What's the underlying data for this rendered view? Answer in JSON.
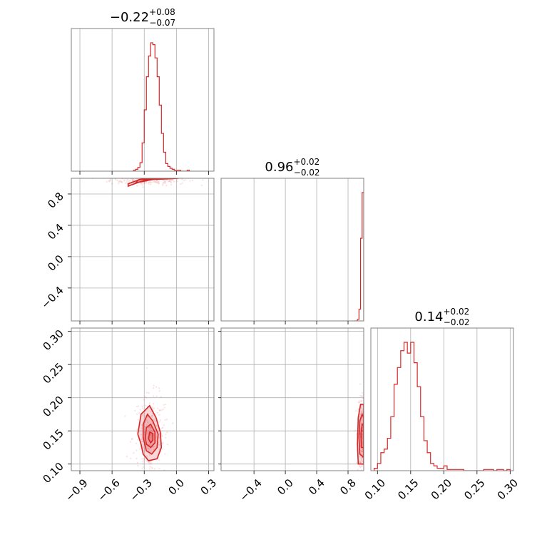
{
  "chart_data": {
    "type": "corner",
    "color": "#d62728",
    "parameters": [
      {
        "title": {
          "median": "−0.22",
          "plus": "+0.08",
          "minus": "−0.07"
        },
        "range": [
          -0.98,
          0.35
        ],
        "ticks": [
          -0.9,
          -0.6,
          -0.3,
          0.0,
          0.3
        ],
        "tick_labels": [
          "−0.9",
          "−0.6",
          "−0.3",
          "0.0",
          "0.3"
        ],
        "histogram": {
          "edges": [
            -0.4,
            -0.38,
            -0.36,
            -0.34,
            -0.32,
            -0.3,
            -0.28,
            -0.26,
            -0.24,
            -0.22,
            -0.2,
            -0.18,
            -0.16,
            -0.14,
            -0.12,
            -0.1,
            -0.08,
            -0.06,
            -0.04,
            -0.02,
            0.0,
            0.02,
            0.04,
            0.06,
            0.08,
            0.1,
            0.12
          ],
          "counts": [
            1,
            2,
            4,
            9,
            30,
            65,
            100,
            122,
            136,
            134,
            120,
            100,
            70,
            40,
            20,
            8,
            5,
            3,
            2,
            1,
            1,
            1,
            0,
            0,
            0,
            1
          ]
        }
      },
      {
        "title": {
          "median": "0.96",
          "plus": "+0.02",
          "minus": "−0.02"
        },
        "range": [
          -0.82,
          1.0
        ],
        "ticks": [
          -0.4,
          0.0,
          0.4,
          0.8
        ],
        "tick_labels": [
          "−0.4",
          "0.0",
          "0.4",
          "0.8"
        ],
        "histogram": {
          "edges": [
            0.88,
            0.9,
            0.92,
            0.94,
            0.96,
            0.98,
            1.0
          ],
          "counts": [
            0,
            0,
            1,
            8,
            56,
            87
          ]
        }
      },
      {
        "title": {
          "median": "0.14",
          "plus": "+0.02",
          "minus": "−0.02"
        },
        "range": [
          0.09,
          0.305
        ],
        "ticks": [
          0.1,
          0.15,
          0.2,
          0.25,
          0.3
        ],
        "tick_labels": [
          "0.10",
          "0.15",
          "0.20",
          "0.25",
          "0.30"
        ],
        "histogram": {
          "edges": [
            0.095,
            0.1,
            0.105,
            0.11,
            0.115,
            0.12,
            0.125,
            0.13,
            0.135,
            0.14,
            0.145,
            0.15,
            0.155,
            0.16,
            0.165,
            0.17,
            0.175,
            0.18,
            0.185,
            0.19,
            0.195,
            0.2,
            0.205,
            0.21,
            0.215,
            0.22,
            0.225,
            0.23,
            0.235,
            0.24,
            0.245,
            0.25,
            0.255,
            0.26,
            0.265,
            0.27,
            0.275,
            0.28,
            0.285,
            0.29,
            0.295,
            0.3
          ],
          "counts": [
            2,
            6,
            15,
            18,
            27,
            45,
            72,
            86,
            100,
            107,
            98,
            107,
            90,
            70,
            45,
            25,
            15,
            6,
            4,
            2,
            2,
            4,
            1,
            1,
            1,
            1,
            1,
            0,
            0,
            0,
            0,
            0,
            0,
            1,
            1,
            1,
            0,
            1,
            1,
            0,
            1
          ]
        }
      }
    ],
    "pairs": [
      {
        "x_param": 0,
        "y_param": 1,
        "contours": [
          {
            "level": 1,
            "points": [
              [
                -0.45,
                0.9
              ],
              [
                -0.35,
                0.95
              ],
              [
                -0.22,
                0.985
              ],
              [
                -0.05,
                0.995
              ],
              [
                0.02,
                1.0
              ],
              [
                -0.2,
                1.0
              ],
              [
                -0.35,
                0.98
              ],
              [
                -0.45,
                0.93
              ]
            ]
          },
          {
            "level": 2,
            "points": [
              [
                -0.38,
                0.94
              ],
              [
                -0.3,
                0.97
              ],
              [
                -0.2,
                0.99
              ],
              [
                -0.1,
                0.997
              ],
              [
                -0.22,
                1.0
              ],
              [
                -0.35,
                0.985
              ]
            ]
          },
          {
            "level": 3,
            "points": [
              [
                -0.3,
                0.97
              ],
              [
                -0.25,
                0.985
              ],
              [
                -0.18,
                0.995
              ],
              [
                -0.25,
                1.0
              ],
              [
                -0.3,
                0.99
              ]
            ]
          }
        ]
      },
      {
        "x_param": 0,
        "y_param": 2,
        "contours": [
          {
            "level": 1,
            "points": [
              [
                -0.33,
                0.13
              ],
              [
                -0.36,
                0.145
              ],
              [
                -0.33,
                0.175
              ],
              [
                -0.25,
                0.188
              ],
              [
                -0.19,
                0.17
              ],
              [
                -0.15,
                0.148
              ],
              [
                -0.14,
                0.125
              ],
              [
                -0.18,
                0.108
              ],
              [
                -0.26,
                0.105
              ],
              [
                -0.31,
                0.115
              ]
            ]
          },
          {
            "level": 2,
            "points": [
              [
                -0.31,
                0.14
              ],
              [
                -0.31,
                0.16
              ],
              [
                -0.27,
                0.175
              ],
              [
                -0.22,
                0.165
              ],
              [
                -0.17,
                0.145
              ],
              [
                -0.18,
                0.125
              ],
              [
                -0.23,
                0.115
              ],
              [
                -0.28,
                0.12
              ]
            ]
          },
          {
            "level": 3,
            "points": [
              [
                -0.29,
                0.14
              ],
              [
                -0.28,
                0.155
              ],
              [
                -0.24,
                0.16
              ],
              [
                -0.2,
                0.148
              ],
              [
                -0.2,
                0.132
              ],
              [
                -0.24,
                0.125
              ],
              [
                -0.28,
                0.13
              ]
            ]
          },
          {
            "level": 4,
            "points": [
              [
                -0.26,
                0.138
              ],
              [
                -0.25,
                0.148
              ],
              [
                -0.22,
                0.146
              ],
              [
                -0.22,
                0.136
              ],
              [
                -0.24,
                0.132
              ]
            ]
          }
        ]
      },
      {
        "x_param": 1,
        "y_param": 2,
        "contours": [
          {
            "level": 1,
            "points": [
              [
                0.93,
                0.1
              ],
              [
                0.92,
                0.13
              ],
              [
                0.93,
                0.17
              ],
              [
                0.96,
                0.19
              ],
              [
                1.0,
                0.19
              ],
              [
                1.0,
                0.1
              ]
            ]
          },
          {
            "level": 2,
            "points": [
              [
                0.95,
                0.115
              ],
              [
                0.94,
                0.14
              ],
              [
                0.95,
                0.165
              ],
              [
                0.98,
                0.175
              ],
              [
                1.0,
                0.17
              ],
              [
                1.0,
                0.11
              ]
            ]
          },
          {
            "level": 3,
            "points": [
              [
                0.97,
                0.125
              ],
              [
                0.965,
                0.145
              ],
              [
                0.98,
                0.16
              ],
              [
                1.0,
                0.158
              ],
              [
                1.0,
                0.125
              ]
            ]
          }
        ]
      }
    ]
  }
}
